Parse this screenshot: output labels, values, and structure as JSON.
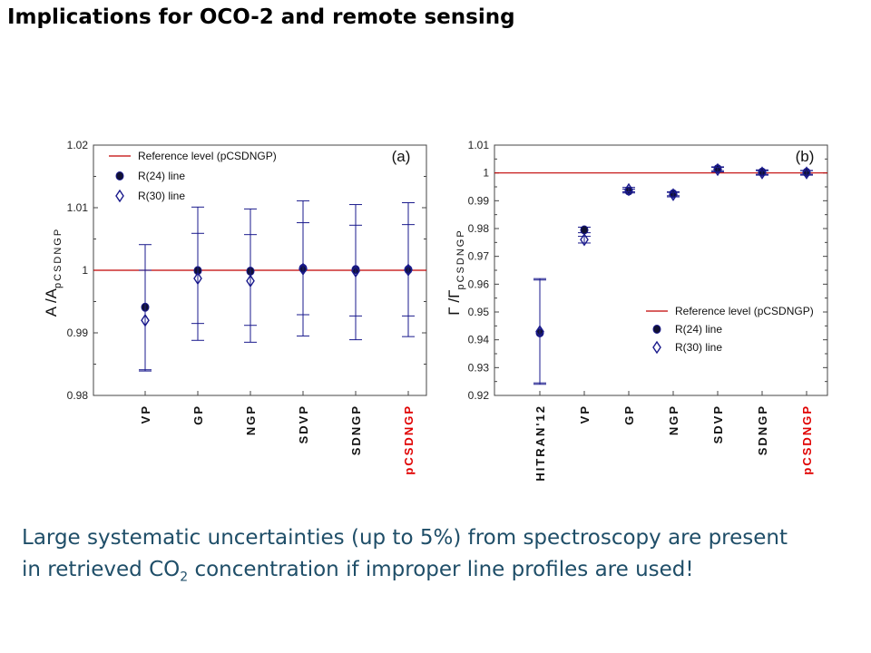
{
  "slide": {
    "title": "Implications for OCO-2 and remote sensing",
    "caption": {
      "line1": "Large  systematic uncertainties (up to 5%) from spectroscopy are present",
      "line2_before": "in retrieved CO",
      "line2_sub": "2",
      "line2_after": " concentration if improper line profiles are used!"
    }
  },
  "colors": {
    "reference": "#c00000",
    "marker": "#1a1a8c",
    "highlight": "#e00000",
    "axis": "#444444"
  },
  "chart_data": [
    {
      "type": "scatter",
      "panel_label": "(a)",
      "ylabel_main": "A",
      "ylabel_sep": " /A",
      "ylabel_sub": "pCSDNGP",
      "ylim": [
        0.98,
        1.02
      ],
      "yticks": [
        0.98,
        0.99,
        1,
        1.01,
        1.02
      ],
      "ytick_labels": [
        "0.98",
        "0.99",
        "1",
        "1.01",
        "1.02"
      ],
      "categories": [
        "VP",
        "GP",
        "NGP",
        "SDVP",
        "SDNGP",
        "pCSDNGP"
      ],
      "highlight_category": "pCSDNGP",
      "reference_level": 1.0,
      "legend": {
        "placement": "top-left",
        "entries": [
          "Reference level (pCSDNGP)",
          "R(24) line",
          "R(30) line"
        ]
      },
      "series": [
        {
          "name": "R(24) line",
          "marker": "filled-circle",
          "values": [
            0.9941,
            0.99995,
            0.99985,
            1.0003,
            1.0001,
            1.0001
          ],
          "err_low": [
            0.9841,
            0.9888,
            0.9885,
            0.9895,
            0.9889,
            0.9894
          ],
          "err_high": [
            1.0041,
            1.0101,
            1.0098,
            1.0111,
            1.0105,
            1.0108
          ]
        },
        {
          "name": "R(30) line",
          "marker": "open-diamond",
          "values": [
            0.992,
            0.9987,
            0.9983,
            1.0002,
            0.99985,
            1.00005
          ],
          "err_low": [
            0.9839,
            0.9915,
            0.9912,
            0.9929,
            0.9927,
            0.9927
          ],
          "err_high": [
            1.0,
            1.0059,
            1.0057,
            1.0076,
            1.0072,
            1.0073
          ]
        }
      ]
    },
    {
      "type": "scatter",
      "panel_label": "(b)",
      "ylabel_main": "Γ",
      "ylabel_sep": " /Γ",
      "ylabel_sub": "pCSDNGP",
      "ylim": [
        0.92,
        1.01
      ],
      "yticks": [
        0.92,
        0.93,
        0.94,
        0.95,
        0.96,
        0.97,
        0.98,
        0.99,
        1,
        1.01
      ],
      "ytick_labels": [
        "0.92",
        "0.93",
        "0.94",
        "0.95",
        "0.96",
        "0.97",
        "0.98",
        "0.99",
        "1",
        "1.01"
      ],
      "categories": [
        "HITRAN'12",
        "VP",
        "GP",
        "NGP",
        "SDVP",
        "SDNGP",
        "pCSDNGP"
      ],
      "highlight_category": "pCSDNGP",
      "reference_level": 1.0,
      "legend": {
        "placement": "middle-right",
        "entries": [
          "Reference level (pCSDNGP)",
          "R(24) line",
          "R(30) line"
        ]
      },
      "series": [
        {
          "name": "R(24) line",
          "marker": "filled-circle",
          "values": [
            0.9425,
            0.9795,
            0.9935,
            0.9925,
            1.0015,
            1.0003,
            1.0002
          ],
          "err_low": [
            0.9245,
            0.9785,
            0.9928,
            0.9918,
            1.0008,
            0.9995,
            0.9995
          ],
          "err_high": [
            0.9615,
            0.9805,
            0.9942,
            0.9932,
            1.0022,
            1.0011,
            1.0009
          ]
        },
        {
          "name": "R(30) line",
          "marker": "open-diamond",
          "values": [
            0.943,
            0.976,
            0.994,
            0.9922,
            1.0012,
            1.0,
            1.0
          ],
          "err_low": [
            0.924,
            0.9748,
            0.9932,
            0.9914,
            1.0004,
            0.9992,
            0.9992
          ],
          "err_high": [
            0.962,
            0.9772,
            0.9948,
            0.993,
            1.002,
            1.0008,
            1.0008
          ]
        }
      ]
    }
  ]
}
